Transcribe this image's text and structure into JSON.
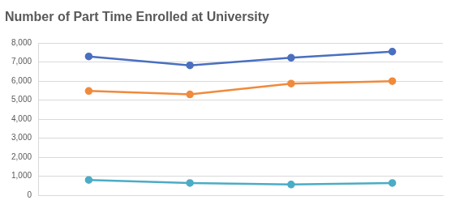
{
  "chart_data": {
    "type": "line",
    "title": "Number of Part Time Enrolled at University",
    "categories": [
      null,
      null,
      null,
      null
    ],
    "series": [
      {
        "color": "#4a6fbf",
        "values": [
          7300,
          6830,
          7230,
          7550
        ]
      },
      {
        "color": "#f08a3c",
        "values": [
          5480,
          5300,
          5870,
          6000
        ]
      },
      {
        "color": "#4bacc6",
        "values": [
          800,
          640,
          560,
          640
        ]
      }
    ],
    "ylim": [
      0,
      8000
    ],
    "yticks": [
      0,
      {
        "value": 1000,
        "label": "1,000"
      },
      {
        "value": 2000,
        "label": "2,000"
      },
      {
        "value": 3000,
        "label": "3,000"
      },
      {
        "value": 4000,
        "label": "4,000"
      },
      {
        "value": 5000,
        "label": "5,000"
      },
      {
        "value": 6000,
        "label": "6,000"
      },
      {
        "value": 7000,
        "label": "7,000"
      },
      {
        "value": 8000,
        "label": "8,000"
      }
    ],
    "grid": true,
    "marker": "circle",
    "line_style": "solid"
  }
}
